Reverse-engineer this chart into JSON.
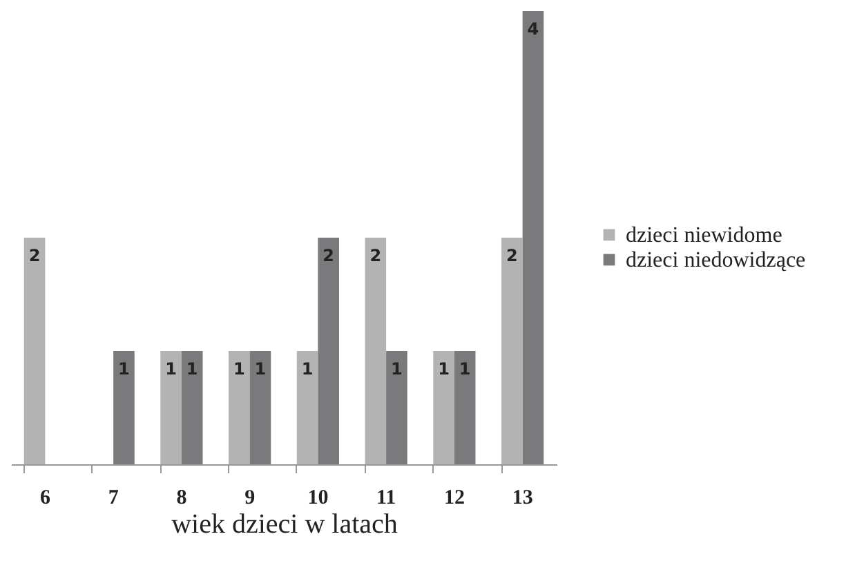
{
  "chart_data": {
    "type": "bar",
    "xlabel": "wiek dzieci w latach",
    "categories": [
      "6",
      "7",
      "8",
      "9",
      "10",
      "11",
      "12",
      "13"
    ],
    "series": [
      {
        "name": "dzieci niewidome",
        "color": "#b3b3b3",
        "values": [
          2,
          null,
          1,
          1,
          1,
          2,
          1,
          2
        ]
      },
      {
        "name": "dzieci niedowidzące",
        "color": "#7a7a7c",
        "values": [
          null,
          1,
          1,
          1,
          2,
          1,
          1,
          4
        ]
      }
    ],
    "data_labels": true,
    "legend": "right"
  }
}
